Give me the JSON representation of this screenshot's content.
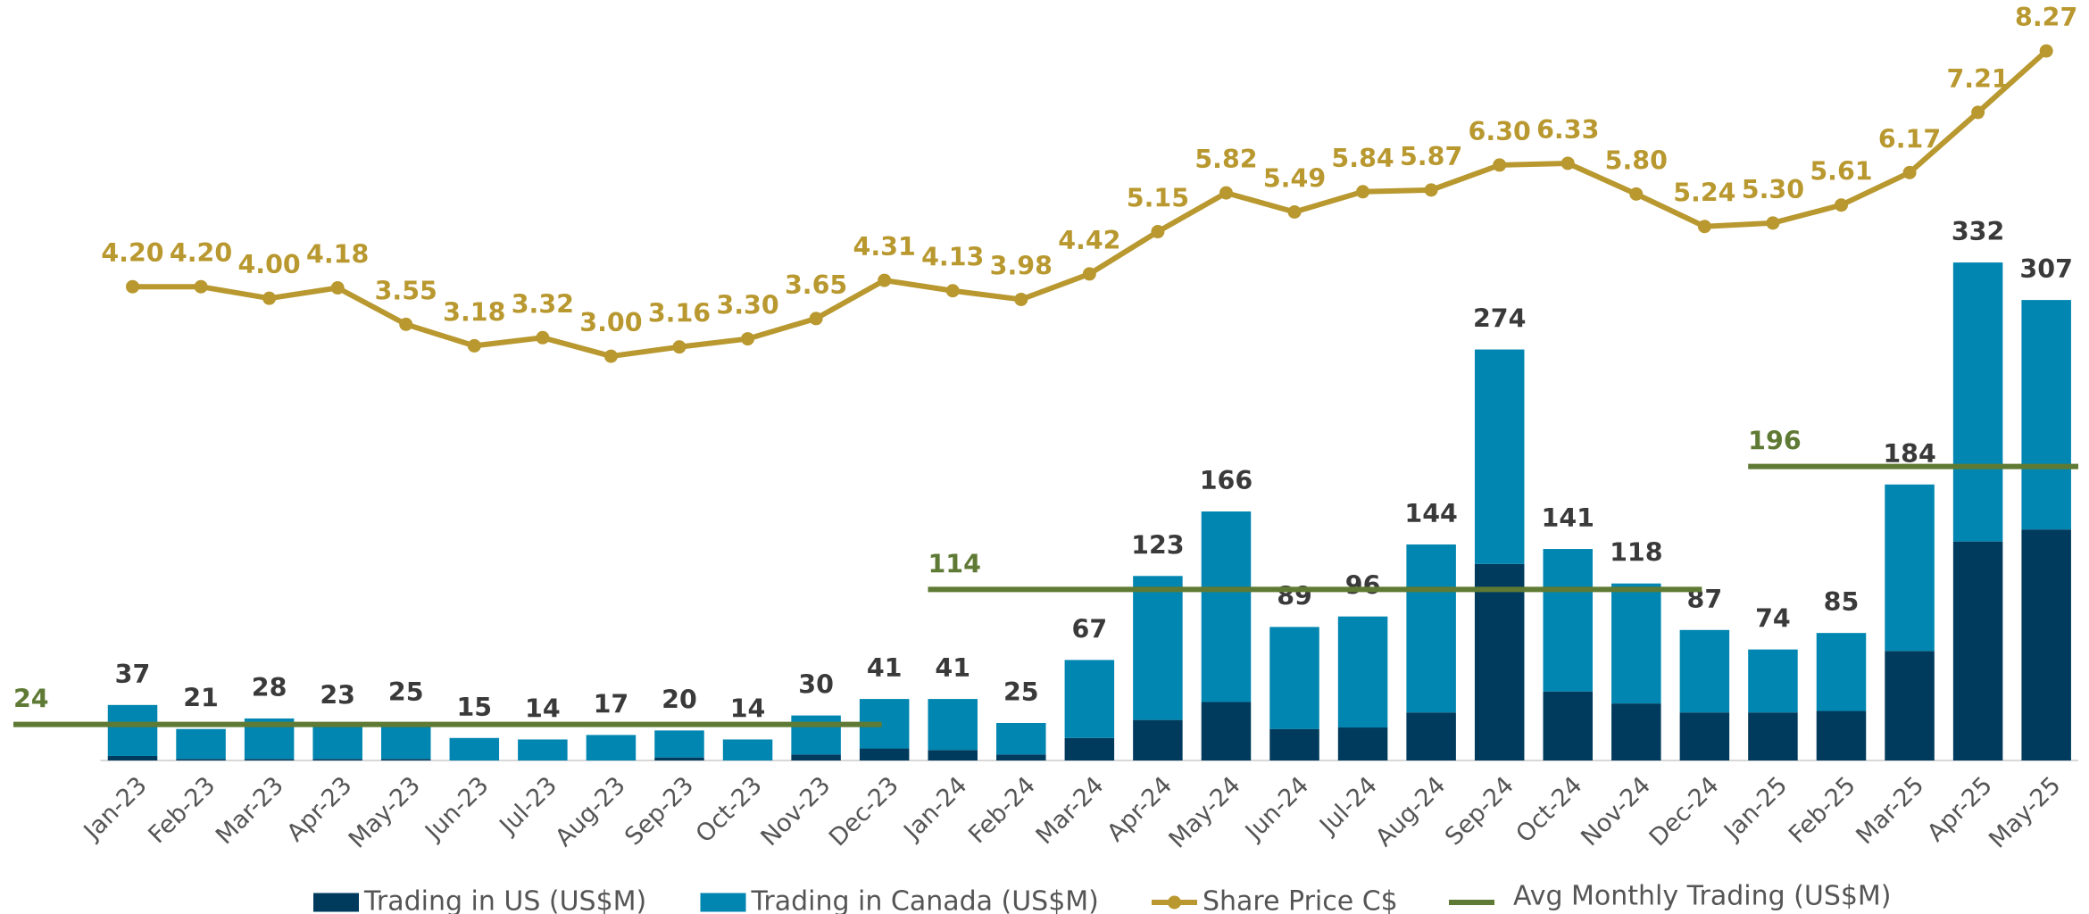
{
  "chart_data": {
    "type": "bar",
    "categories": [
      "Jan-23",
      "Feb-23",
      "Mar-23",
      "Apr-23",
      "May-23",
      "Jun-23",
      "Jul-23",
      "Aug-23",
      "Sep-23",
      "Oct-23",
      "Nov-23",
      "Dec-23",
      "Jan-24",
      "Feb-24",
      "Mar-24",
      "Apr-24",
      "May-24",
      "Jun-24",
      "Jul-24",
      "Aug-24",
      "Sep-24",
      "Oct-24",
      "Nov-24",
      "Dec-24",
      "Jan-25",
      "Feb-25",
      "Mar-25",
      "Apr-25",
      "May-25"
    ],
    "series": [
      {
        "name": "Trading in US (US$M)",
        "color": "#003a5c",
        "stack": true,
        "values": [
          3,
          1,
          1,
          1,
          1,
          0,
          0,
          0,
          2,
          0,
          4,
          8,
          7,
          4,
          15,
          27,
          39,
          21,
          22,
          32,
          131,
          46,
          38,
          32,
          32,
          33,
          73,
          146,
          154
        ]
      },
      {
        "name": "Trading in Canada (US$M)",
        "color": "#0086b0",
        "stack": true,
        "values": [
          34,
          20,
          27,
          22,
          24,
          15,
          14,
          17,
          18,
          14,
          26,
          33,
          34,
          21,
          52,
          96,
          127,
          68,
          74,
          112,
          143,
          95,
          80,
          55,
          42,
          52,
          111,
          186,
          153
        ]
      },
      {
        "name": "Share Price C$",
        "color": "#b8982f",
        "axis": "y2",
        "kind": "line",
        "values": [
          4.2,
          4.2,
          4.0,
          4.18,
          3.55,
          3.18,
          3.32,
          3.0,
          3.16,
          3.3,
          3.65,
          4.31,
          4.13,
          3.98,
          4.42,
          5.15,
          5.82,
          5.49,
          5.84,
          5.87,
          6.3,
          6.33,
          5.8,
          5.24,
          5.3,
          5.61,
          6.17,
          7.21,
          8.27
        ],
        "value_labels": [
          "4.20",
          "4.20",
          "4.00",
          "4.18",
          "3.55",
          "3.18",
          "3.32",
          "3.00",
          "3.16",
          "3.30",
          "3.65",
          "4.31",
          "4.13",
          "3.98",
          "4.42",
          "5.15",
          "5.82",
          "5.49",
          "5.84",
          "5.87",
          "6.30",
          "6.33",
          "5.80",
          "5.24",
          "5.30",
          "5.61",
          "6.17",
          "7.21",
          "8.27"
        ]
      },
      {
        "name": "Avg Monthly Trading (US$M)",
        "color": "#5f7a34",
        "kind": "step",
        "values": [
          24,
          24,
          24,
          24,
          24,
          24,
          24,
          24,
          24,
          24,
          24,
          24,
          114,
          114,
          114,
          114,
          114,
          114,
          114,
          114,
          114,
          114,
          114,
          114,
          196,
          196,
          196,
          196,
          196
        ]
      }
    ],
    "totals": [
      37,
      21,
      28,
      23,
      25,
      15,
      14,
      17,
      20,
      14,
      30,
      41,
      41,
      25,
      67,
      123,
      166,
      89,
      96,
      144,
      274,
      141,
      118,
      87,
      74,
      85,
      184,
      332,
      307
    ],
    "ylim": [
      0,
      507
    ],
    "y2lim": [
      -3.98,
      9.15
    ]
  }
}
